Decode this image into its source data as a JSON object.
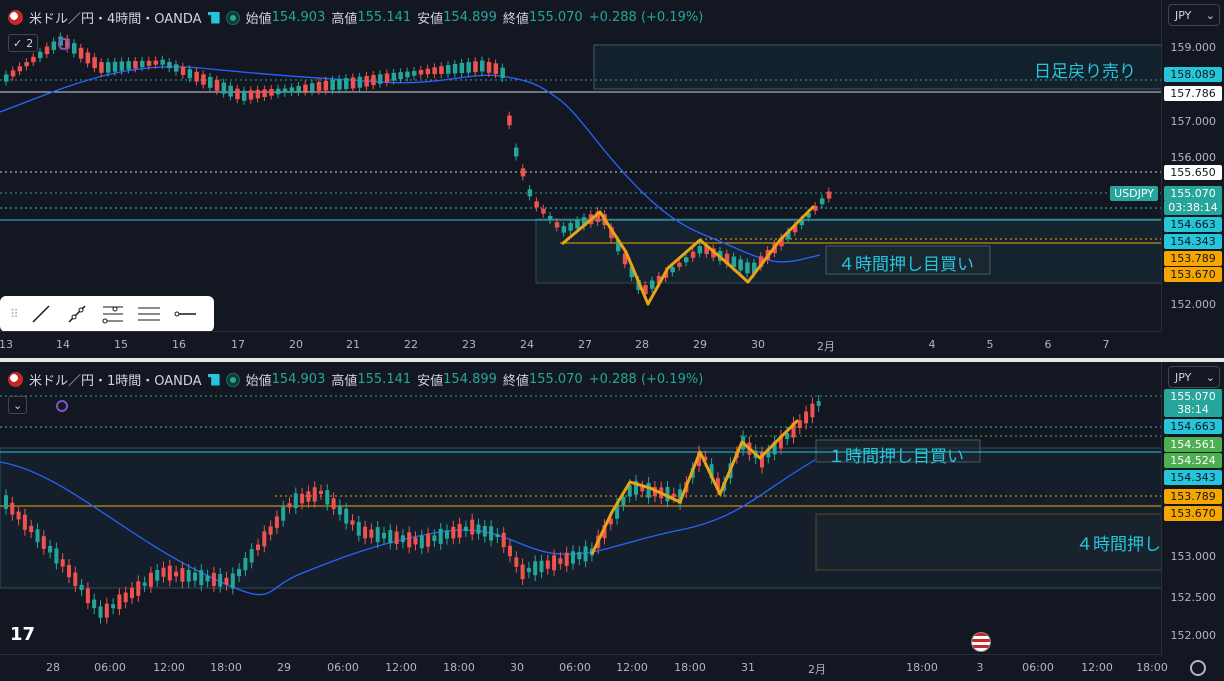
{
  "top": {
    "title": "米ドル／円・4時間・OANDA",
    "ohlc": {
      "open_label": "始値",
      "open": "154.903",
      "high_label": "高値",
      "high": "155.141",
      "low_label": "安値",
      "low": "154.899",
      "close_label": "終値",
      "close": "155.070",
      "change": "+0.288 (+0.19%)"
    },
    "collapse_count": "2",
    "currency": "JPY",
    "price_ticks": [
      "159.000",
      "157.000",
      "156.000",
      "152.000"
    ],
    "tags": [
      {
        "text": "158.089",
        "color": "#26c6da",
        "text_color": "#131722"
      },
      {
        "text": "157.786",
        "color": "#ffffff",
        "text_color": "#131722"
      },
      {
        "text": "155.650",
        "color": "#ffffff",
        "text_color": "#131722"
      },
      {
        "text": "155.070",
        "color": "#26a69a",
        "text_color": "#ffffff"
      },
      {
        "text": "03:38:14",
        "color": "#26a69a",
        "text_color": "#ffffff"
      },
      {
        "text": "154.663",
        "color": "#26c6da",
        "text_color": "#131722"
      },
      {
        "text": "154.343",
        "color": "#26c6da",
        "text_color": "#131722"
      },
      {
        "text": "153.789",
        "color": "#f7a600",
        "text_color": "#131722"
      },
      {
        "text": "153.670",
        "color": "#f7a600",
        "text_color": "#131722"
      }
    ],
    "symbol_tag": "USDJPY",
    "zone_sell": "日足戻り売り",
    "zone_buy": "４時間押し目買い",
    "time_labels": [
      "13",
      "14",
      "15",
      "16",
      "17",
      "20",
      "21",
      "22",
      "23",
      "24",
      "27",
      "28",
      "29",
      "30",
      "2月",
      "4",
      "5",
      "6",
      "7"
    ]
  },
  "bottom": {
    "title": "米ドル／円・1時間・OANDA",
    "ohlc": {
      "open_label": "始値",
      "open": "154.903",
      "high_label": "高値",
      "high": "155.141",
      "low_label": "安値",
      "low": "154.899",
      "close_label": "終値",
      "close": "155.070",
      "change": "+0.288 (+0.19%)"
    },
    "currency": "JPY",
    "price_ticks": [
      "153.000",
      "152.500",
      "152.000"
    ],
    "tags": [
      {
        "text": "155.070",
        "color": "#26a69a",
        "text_color": "#ffffff"
      },
      {
        "text": "38:14",
        "color": "#26a69a",
        "text_color": "#ffffff"
      },
      {
        "text": "154.663",
        "color": "#26c6da",
        "text_color": "#131722"
      },
      {
        "text": "154.561",
        "color": "#4caf50",
        "text_color": "#ffffff"
      },
      {
        "text": "154.524",
        "color": "#4caf50",
        "text_color": "#ffffff"
      },
      {
        "text": "154.343",
        "color": "#26c6da",
        "text_color": "#131722"
      },
      {
        "text": "153.789",
        "color": "#f7a600",
        "text_color": "#131722"
      },
      {
        "text": "153.670",
        "color": "#f7a600",
        "text_color": "#131722"
      }
    ],
    "zone_buy_1h": "１時間押し目買い",
    "zone_buy_4h": "４時間押し",
    "time_labels": [
      "28",
      "06:00",
      "12:00",
      "18:00",
      "29",
      "06:00",
      "12:00",
      "18:00",
      "30",
      "06:00",
      "12:00",
      "18:00",
      "31",
      "2月",
      "18:00",
      "3",
      "06:00",
      "12:00",
      "18:00"
    ]
  },
  "toolbar": {
    "tools": [
      "line-tool",
      "ray-tool",
      "fib-tool",
      "parallel-channel-tool",
      "horizontal-ray-tool"
    ]
  },
  "colors": {
    "up": "#26a69a",
    "down": "#ef5350",
    "ma": "#2962ff",
    "zigzag": "#e8a317",
    "zone_border": "#26c6da"
  }
}
